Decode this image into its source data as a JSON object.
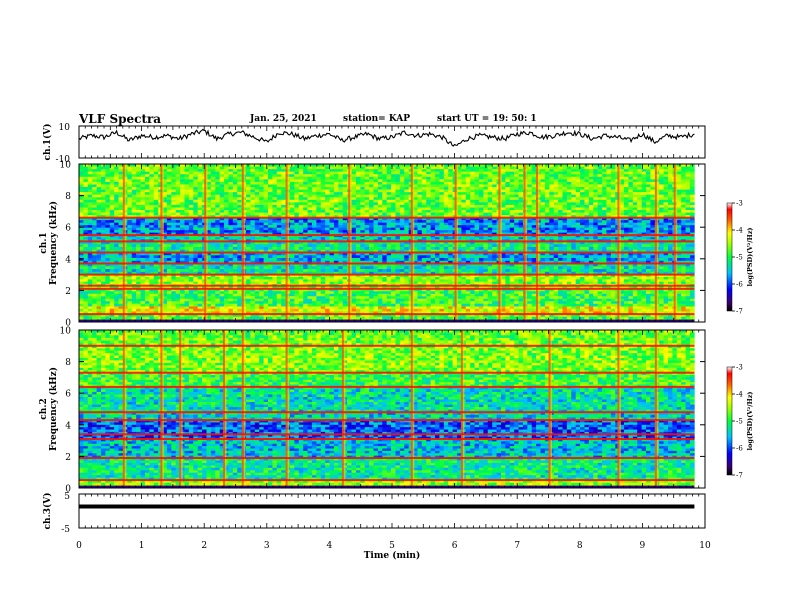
{
  "header": {
    "title": "VLF Spectra",
    "date": "Jan. 25, 2021",
    "station": "station= KAP",
    "start_ut": "start  UT =   19: 50: 1"
  },
  "chart_data": [
    {
      "type": "line",
      "panel": "ch1-voltage",
      "ylabel": "ch.1(V)",
      "ylim": [
        -10,
        10
      ],
      "ytick_labels": [
        "10",
        "-10"
      ],
      "xlim": [
        0,
        10
      ],
      "x_extent": 9.83,
      "series": [
        {
          "x": [
            0,
            0.2,
            0.4,
            0.6,
            0.8,
            1.0,
            1.2,
            1.4,
            1.6,
            1.8,
            2.0,
            2.2,
            2.4,
            2.6,
            2.8,
            3.0,
            3.2,
            3.4,
            3.6,
            3.8,
            4.0,
            4.2,
            4.4,
            4.6,
            4.8,
            5.0,
            5.2,
            5.4,
            5.6,
            5.8,
            6.0,
            6.2,
            6.4,
            6.6,
            6.8,
            7.0,
            7.2,
            7.4,
            7.6,
            7.8,
            8.0,
            8.2,
            8.4,
            8.6,
            8.8,
            9.0,
            9.2,
            9.4,
            9.6,
            9.83
          ],
          "y": [
            2,
            4,
            3,
            6,
            1,
            4,
            3,
            4,
            2,
            5,
            7,
            2,
            5,
            6,
            3,
            0,
            6,
            5,
            2,
            4,
            5,
            1,
            3,
            5,
            2,
            3,
            6,
            4,
            5,
            3,
            -3,
            2,
            4,
            3,
            2,
            5,
            6,
            3,
            4,
            6,
            5,
            2,
            4,
            3,
            1,
            5,
            0,
            4,
            3,
            5
          ]
        }
      ]
    },
    {
      "type": "heatmap",
      "panel": "ch1-spectrogram",
      "ylabel": "ch.1\nFrequency (kHz)",
      "xlim": [
        0,
        10
      ],
      "ylim": [
        0,
        10
      ],
      "x_extent": 9.83,
      "yticks": [
        0,
        2,
        4,
        6,
        8,
        10
      ],
      "colorbar": {
        "label": "log(PSD)(V²/Hz)",
        "range": [
          -7,
          -3
        ],
        "ticks": [
          -3,
          -4,
          -5,
          -6,
          -7
        ]
      },
      "horizontal_lines_khz": [
        0.5,
        2.1,
        2.3,
        3.0,
        3.7,
        4.4,
        5.1,
        5.5,
        6.6
      ],
      "vertical_bursts_min": [
        0.7,
        1.3,
        2.0,
        2.6,
        3.3,
        4.3,
        5.3,
        6.0,
        6.7,
        7.1,
        7.3,
        8.6,
        9.2,
        9.5
      ],
      "band_levels": [
        {
          "from": 0.0,
          "to": 0.5,
          "value": -4.8
        },
        {
          "from": 0.5,
          "to": 1.0,
          "value": -4.2
        },
        {
          "from": 1.0,
          "to": 2.1,
          "value": -4.9
        },
        {
          "from": 2.1,
          "to": 3.0,
          "value": -4.6
        },
        {
          "from": 3.0,
          "to": 3.7,
          "value": -5.3
        },
        {
          "from": 3.7,
          "to": 4.4,
          "value": -5.6
        },
        {
          "from": 4.4,
          "to": 5.1,
          "value": -5.2
        },
        {
          "from": 5.1,
          "to": 5.5,
          "value": -5.4
        },
        {
          "from": 5.5,
          "to": 6.6,
          "value": -5.7
        },
        {
          "from": 6.6,
          "to": 10.0,
          "value": -4.7
        }
      ]
    },
    {
      "type": "heatmap",
      "panel": "ch2-spectrogram",
      "ylabel": "ch.2\nFrequency (kHz)",
      "xlim": [
        0,
        10
      ],
      "ylim": [
        0,
        10
      ],
      "x_extent": 9.83,
      "yticks": [
        0,
        2,
        4,
        6,
        8,
        10
      ],
      "colorbar": {
        "label": "log(PSD)(V²/Hz)",
        "range": [
          -7,
          -3
        ],
        "ticks": [
          -3,
          -4,
          -5,
          -6,
          -7
        ]
      },
      "horizontal_lines_khz": [
        0.5,
        1.9,
        3.1,
        3.4,
        4.3,
        4.8,
        6.4,
        7.3,
        9.0
      ],
      "vertical_bursts_min": [
        0.7,
        1.3,
        1.6,
        2.3,
        2.6,
        3.3,
        4.2,
        5.3,
        6.1,
        7.5,
        8.6,
        9.2
      ],
      "band_levels": [
        {
          "from": 0.0,
          "to": 0.5,
          "value": -4.5
        },
        {
          "from": 0.5,
          "to": 1.9,
          "value": -5.2
        },
        {
          "from": 1.9,
          "to": 3.1,
          "value": -5.5
        },
        {
          "from": 3.1,
          "to": 4.3,
          "value": -5.9
        },
        {
          "from": 4.3,
          "to": 4.8,
          "value": -5.4
        },
        {
          "from": 4.8,
          "to": 6.4,
          "value": -5.3
        },
        {
          "from": 6.4,
          "to": 7.3,
          "value": -4.9
        },
        {
          "from": 7.3,
          "to": 9.0,
          "value": -4.6
        },
        {
          "from": 9.0,
          "to": 10.0,
          "value": -4.7
        }
      ]
    },
    {
      "type": "line",
      "panel": "ch3-voltage",
      "ylabel": "ch.3(V)",
      "ylim": [
        -5,
        5
      ],
      "ytick_labels": [
        "5",
        "-5"
      ],
      "xlim": [
        0,
        10
      ],
      "x_extent": 9.83,
      "xlabel": "Time (min)",
      "xticks": [
        0,
        1,
        2,
        3,
        4,
        5,
        6,
        7,
        8,
        9,
        10
      ],
      "series": [
        {
          "level": 1.5,
          "band_half_width": 0.4
        }
      ]
    }
  ],
  "colors": {
    "axis": "#000000",
    "trace": "#000000",
    "colormap": [
      "#3a0070",
      "#0000ff",
      "#00a0ff",
      "#00e0e0",
      "#00ff40",
      "#a0ff00",
      "#ffff00",
      "#ff8000",
      "#ff0000",
      "#ffffff"
    ]
  }
}
